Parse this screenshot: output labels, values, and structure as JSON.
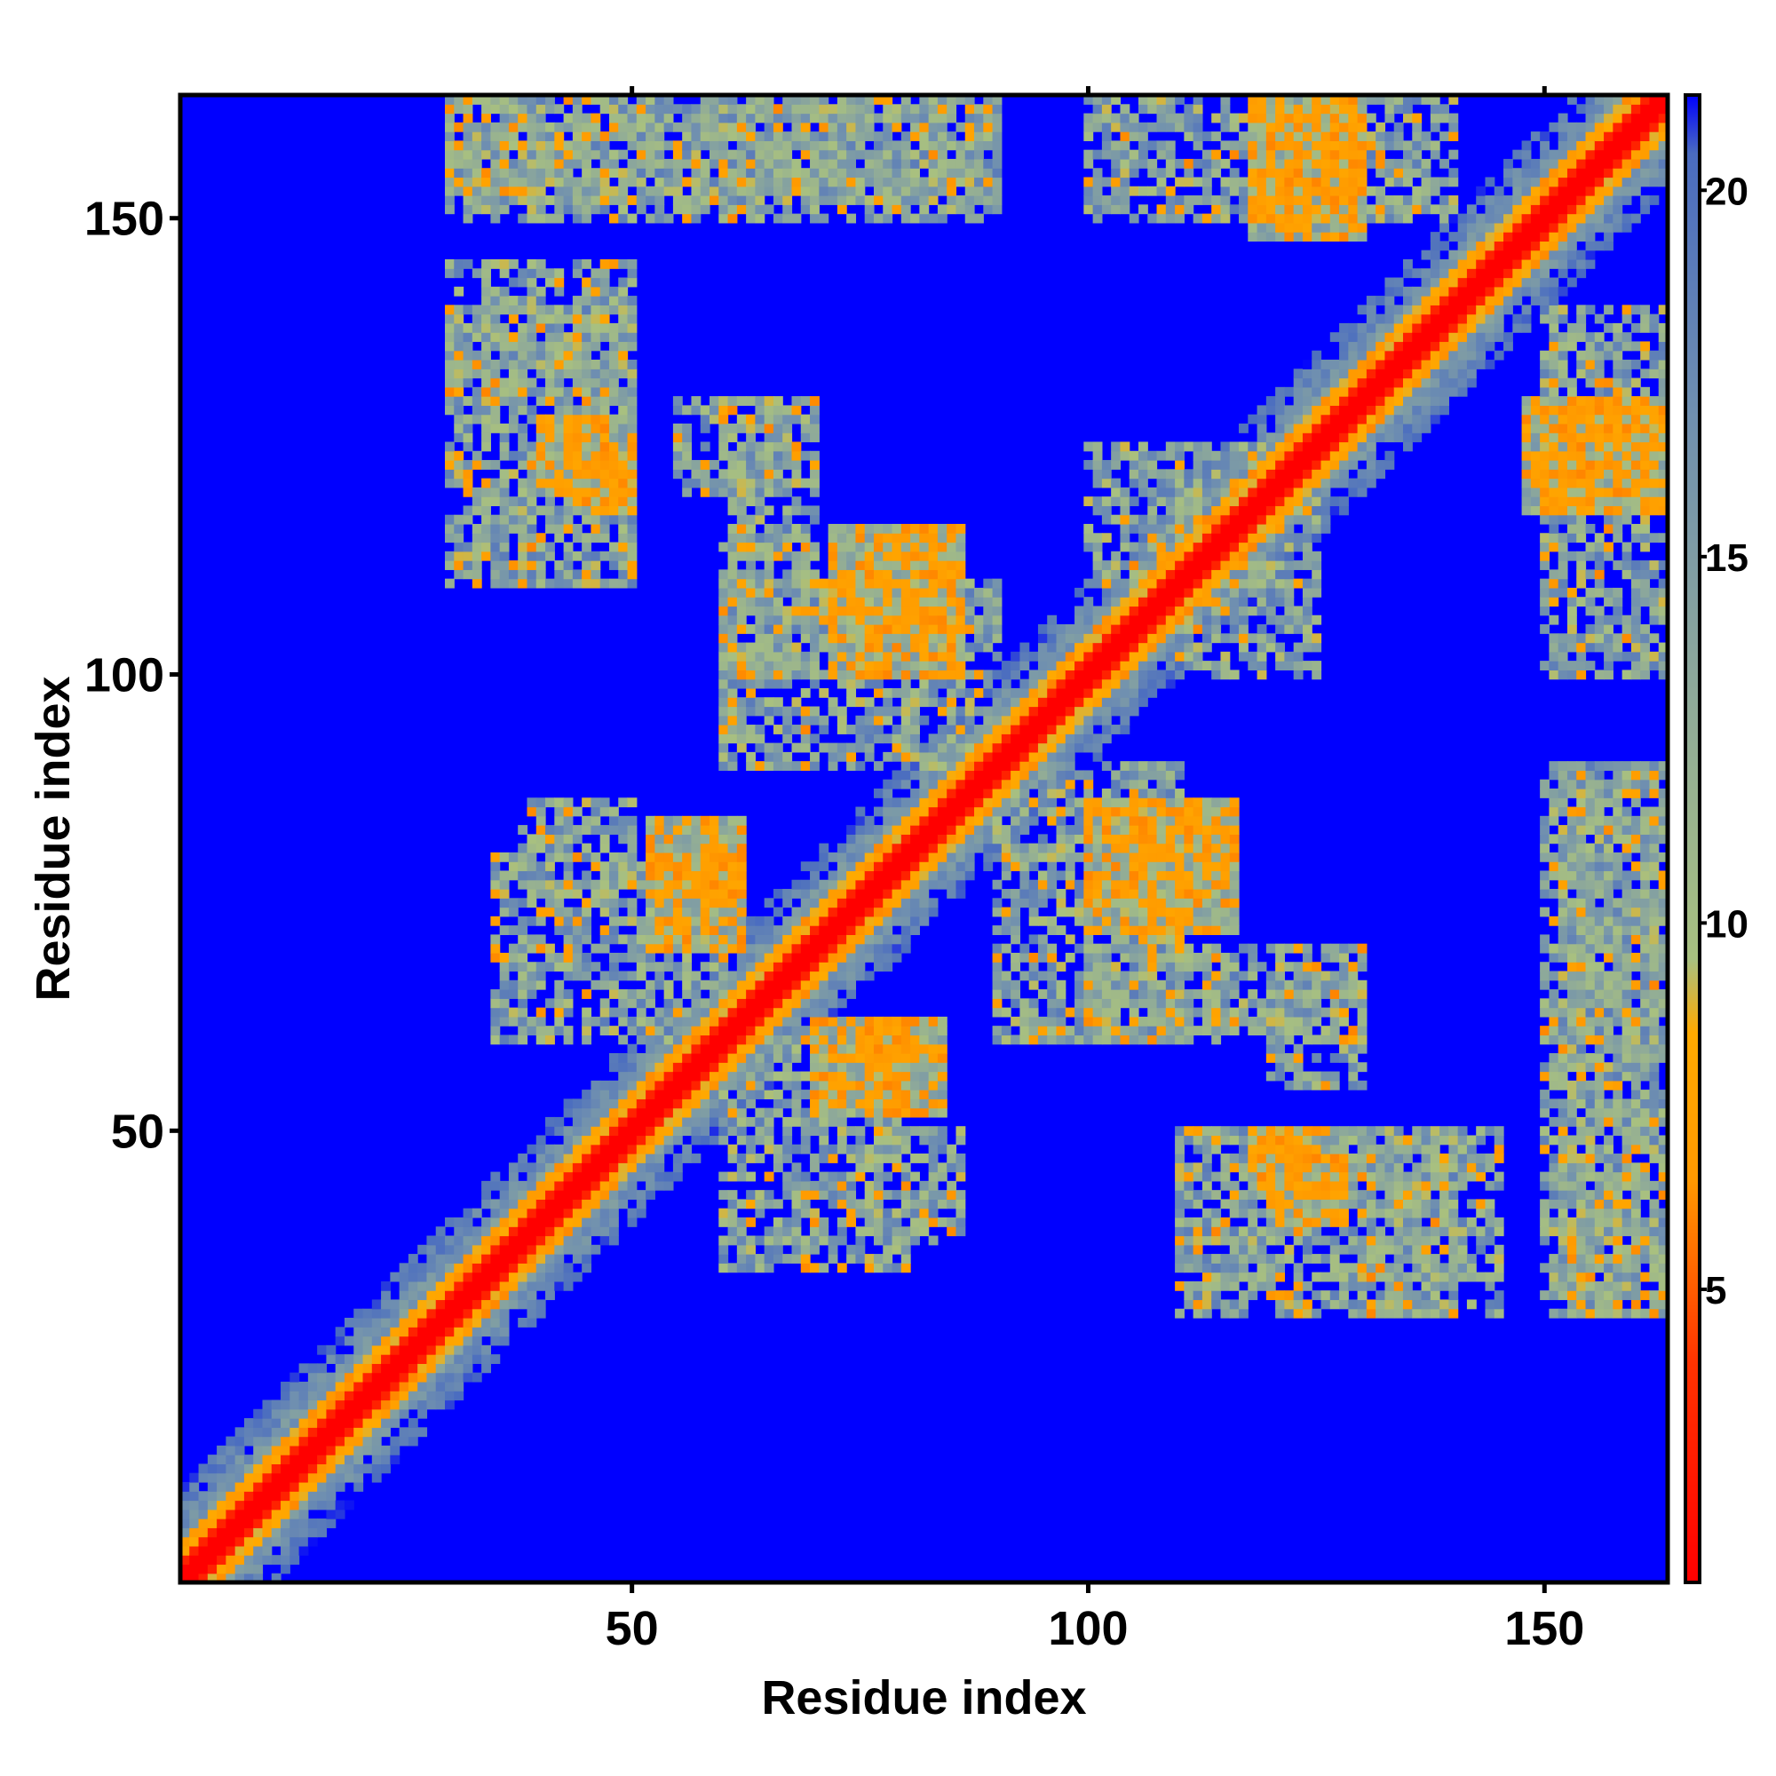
{
  "chart_data": {
    "type": "heatmap",
    "title": "",
    "xlabel": "Residue index",
    "ylabel": "Residue index",
    "n": 163,
    "xlim": [
      1,
      163
    ],
    "ylim": [
      1,
      163
    ],
    "x_ticks": [
      50,
      100,
      150
    ],
    "y_ticks": [
      50,
      100,
      150
    ],
    "colorbar": {
      "ticks": [
        5,
        10,
        15,
        20
      ],
      "range": [
        1,
        21.3
      ],
      "stops": [
        {
          "value": 1,
          "color": "#ff0000"
        },
        {
          "value": 4,
          "color": "#ff3300"
        },
        {
          "value": 6.5,
          "color": "#ff9900"
        },
        {
          "value": 8.5,
          "color": "#ffaa00"
        },
        {
          "value": 9.5,
          "color": "#a8c080"
        },
        {
          "value": 13,
          "color": "#8faa99"
        },
        {
          "value": 17,
          "color": "#6f8fb0"
        },
        {
          "value": 20.5,
          "color": "#4a6cc0"
        },
        {
          "value": 21.3,
          "color": "#0000ff"
        }
      ]
    },
    "background_value": 21.3,
    "background_color": "#0000ff",
    "diagonal_band": {
      "center_value": 1,
      "halfwidth_residues": 10
    },
    "contact_features": [
      {
        "x": [
          40,
          48
        ],
        "y": [
          120,
          128
        ],
        "value": 6
      },
      {
        "x": [
          52,
          62
        ],
        "y": [
          76,
          84
        ],
        "value": 6
      },
      {
        "x": [
          72,
          86
        ],
        "y": [
          100,
          116
        ],
        "value": 6
      },
      {
        "x": [
          70,
          80
        ],
        "y": [
          52,
          62
        ],
        "value": 6
      },
      {
        "x": [
          104,
          116
        ],
        "y": [
          80,
          86
        ],
        "value": 6
      },
      {
        "x": [
          118,
          126
        ],
        "y": [
          44,
          50
        ],
        "value": 6
      },
      {
        "x": [
          118,
          130
        ],
        "y": [
          148,
          163
        ],
        "value": 6
      },
      {
        "x": [
          150,
          162
        ],
        "y": [
          118,
          130
        ],
        "value": 6
      },
      {
        "x": [
          30,
          50
        ],
        "y": [
          130,
          145
        ],
        "value": 12
      },
      {
        "x": [
          30,
          90
        ],
        "y": [
          152,
          163
        ],
        "value": 12
      },
      {
        "x": [
          55,
          68
        ],
        "y": [
          120,
          130
        ],
        "value": 12
      },
      {
        "x": [
          60,
          90
        ],
        "y": [
          90,
          110
        ],
        "value": 12
      },
      {
        "x": [
          100,
          120
        ],
        "y": [
          110,
          125
        ],
        "value": 12
      },
      {
        "x": [
          100,
          130
        ],
        "y": [
          60,
          70
        ],
        "value": 12
      },
      {
        "x": [
          110,
          140
        ],
        "y": [
          30,
          50
        ],
        "value": 12
      },
      {
        "x": [
          150,
          162
        ],
        "y": [
          30,
          90
        ],
        "value": 12
      },
      {
        "x": [
          100,
          140
        ],
        "y": [
          150,
          163
        ],
        "value": 12
      },
      {
        "x": [
          76,
          86
        ],
        "y": [
          38,
          50
        ],
        "value": 12
      },
      {
        "x": [
          35,
          60
        ],
        "y": [
          60,
          80
        ],
        "value": 12
      }
    ]
  }
}
